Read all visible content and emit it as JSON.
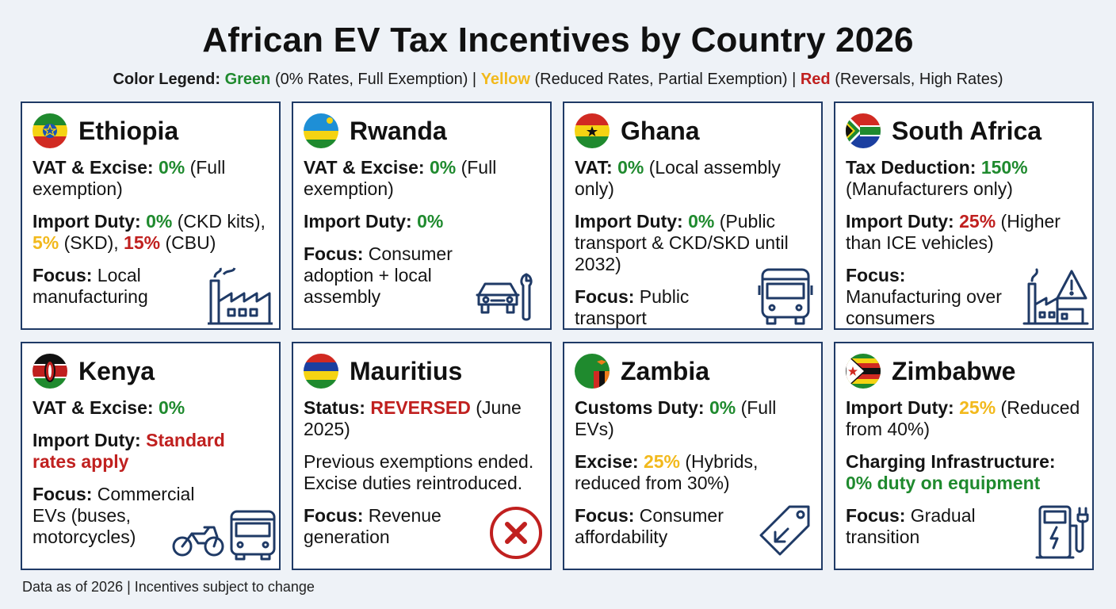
{
  "title": "African EV Tax Incentives by Country 2026",
  "legend": {
    "prefix": "Color Legend:",
    "green_label": "Green",
    "green_desc": "(0% Rates, Full Exemption) |",
    "yellow_label": "Yellow",
    "yellow_desc": "(Reduced Rates, Partial Exemption) |",
    "red_label": "Red",
    "red_desc": "(Reversals, High Rates)"
  },
  "colors": {
    "green": "#1f8a2e",
    "yellow": "#f2b91c",
    "red": "#c0201f",
    "border": "#1f3a66",
    "icon": "#1f3a66"
  },
  "cards": {
    "ethiopia": {
      "name": "Ethiopia",
      "r1_label": "VAT & Excise:",
      "r1_val": "0%",
      "r1_note": "(Full exemption)",
      "r2_label": "Import Duty:",
      "r2_v1": "0%",
      "r2_n1": "(CKD kits),",
      "r2_v2": "5%",
      "r2_n2": "(SKD),",
      "r2_v3": "15%",
      "r2_n3": "(CBU)",
      "focus_label": "Focus:",
      "focus": "Local manufacturing",
      "icon": "factory-icon"
    },
    "rwanda": {
      "name": "Rwanda",
      "r1_label": "VAT & Excise:",
      "r1_val": "0%",
      "r1_note": "(Full exemption)",
      "r2_label": "Import Duty:",
      "r2_val": "0%",
      "focus_label": "Focus:",
      "focus": "Consumer adoption + local assembly",
      "icon": "car-wrench-icon"
    },
    "ghana": {
      "name": "Ghana",
      "r1_label": "VAT:",
      "r1_val": "0%",
      "r1_note": "(Local assembly only)",
      "r2_label": "Import Duty:",
      "r2_val": "0%",
      "r2_note": "(Public transport & CKD/SKD until 2032)",
      "focus_label": "Focus:",
      "focus": "Public transport",
      "icon": "bus-icon"
    },
    "south_africa": {
      "name": "South Africa",
      "r1_label": "Tax Deduction:",
      "r1_val": "150%",
      "r1_note": "(Manufacturers only)",
      "r2_label": "Import Duty:",
      "r2_val": "25%",
      "r2_note": "(Higher than ICE vehicles)",
      "focus_label": "Focus:",
      "focus": "Manufacturing over consumers",
      "icon": "factory-warning-icon"
    },
    "kenya": {
      "name": "Kenya",
      "r1_label": "VAT & Excise:",
      "r1_val": "0%",
      "r2_label": "Import Duty:",
      "r2_val": "Standard rates apply",
      "focus_label": "Focus:",
      "focus": "Commercial EVs (buses, motorcycles)",
      "icon": "motorcycle-bus-icon"
    },
    "mauritius": {
      "name": "Mauritius",
      "r1_label": "Status:",
      "r1_val": "REVERSED",
      "r1_note": "(June 2025)",
      "r2_text": "Previous exemptions ended. Excise duties reintroduced.",
      "focus_label": "Focus:",
      "focus": "Revenue generation",
      "icon": "cross-circle-icon"
    },
    "zambia": {
      "name": "Zambia",
      "r1_label": "Customs Duty:",
      "r1_val": "0%",
      "r1_note": "(Full EVs)",
      "r2_label": "Excise:",
      "r2_val": "25%",
      "r2_note": "(Hybrids, reduced from 30%)",
      "focus_label": "Focus:",
      "focus": "Consumer affordability",
      "icon": "price-tag-icon"
    },
    "zimbabwe": {
      "name": "Zimbabwe",
      "r1_label": "Import Duty:",
      "r1_val": "25%",
      "r1_note": "(Reduced from 40%)",
      "r2_label": "Charging Infrastructure:",
      "r2_val": "0% duty on equipment",
      "focus_label": "Focus:",
      "focus": "Gradual transition",
      "icon": "charging-station-icon"
    }
  },
  "footer": "Data as of 2026 | Incentives subject to change"
}
